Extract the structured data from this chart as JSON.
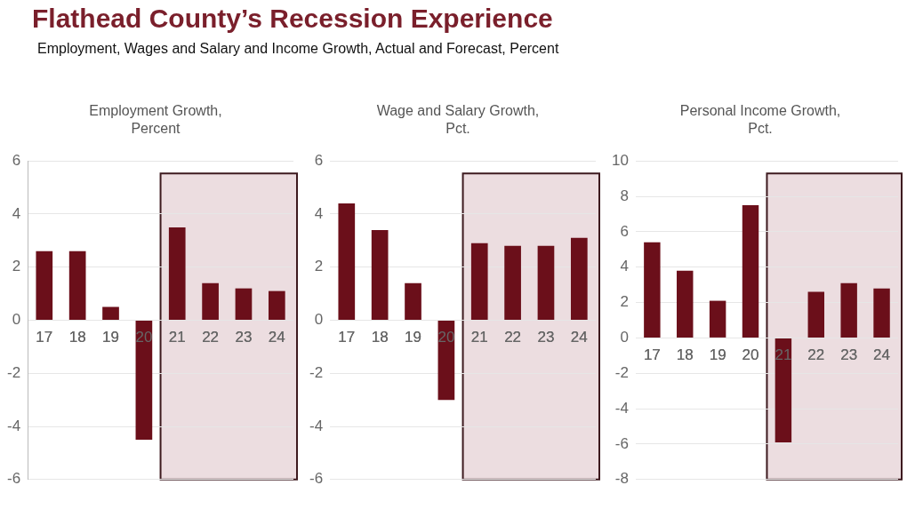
{
  "chart_data": [
    {
      "type": "other",
      "title": "Flathead County’s Recession Experience",
      "subtitle": "Employment, Wages and Salary and Income Growth, Actual and Forecast, Percent"
    },
    {
      "type": "bar",
      "title": "Employment Growth, Percent",
      "categories": [
        "17",
        "18",
        "19",
        "20",
        "21",
        "22",
        "23",
        "24"
      ],
      "values": [
        2.6,
        2.6,
        0.5,
        -4.5,
        3.5,
        1.4,
        1.2,
        1.1
      ],
      "color": "#6b0f1a",
      "ylim": [
        -6,
        6
      ],
      "yticks": [
        -6,
        -4,
        -2,
        0,
        2,
        4,
        6
      ],
      "grid": "y",
      "bands": [
        {
          "axis": "x",
          "from": "21",
          "to": "24",
          "color": "#ecdde0"
        }
      ]
    },
    {
      "type": "bar",
      "title": "Wage and Salary Growth, Pct.",
      "categories": [
        "17",
        "18",
        "19",
        "20",
        "21",
        "22",
        "23",
        "24"
      ],
      "values": [
        4.4,
        3.4,
        1.4,
        -3.0,
        2.9,
        2.8,
        2.8,
        3.1
      ],
      "color": "#6b0f1a",
      "ylim": [
        -6,
        6
      ],
      "yticks": [
        -6,
        -4,
        -2,
        0,
        2,
        4,
        6
      ],
      "grid": "y",
      "bands": [
        {
          "axis": "x",
          "from": "21",
          "to": "24",
          "color": "#ecdde0"
        }
      ]
    },
    {
      "type": "bar",
      "title": "Personal Income Growth, Pct.",
      "categories": [
        "17",
        "18",
        "19",
        "20",
        "21",
        "22",
        "23",
        "24"
      ],
      "values": [
        5.4,
        3.8,
        2.1,
        7.5,
        -5.9,
        2.6,
        3.1,
        2.8
      ],
      "color": "#6b0f1a",
      "ylim": [
        -8,
        10
      ],
      "yticks": [
        -8,
        -6,
        -4,
        -2,
        0,
        2,
        4,
        6,
        8,
        10
      ],
      "grid": "y",
      "bands": [
        {
          "axis": "x",
          "from": "21",
          "to": "24",
          "color": "#ecdde0"
        }
      ]
    }
  ]
}
